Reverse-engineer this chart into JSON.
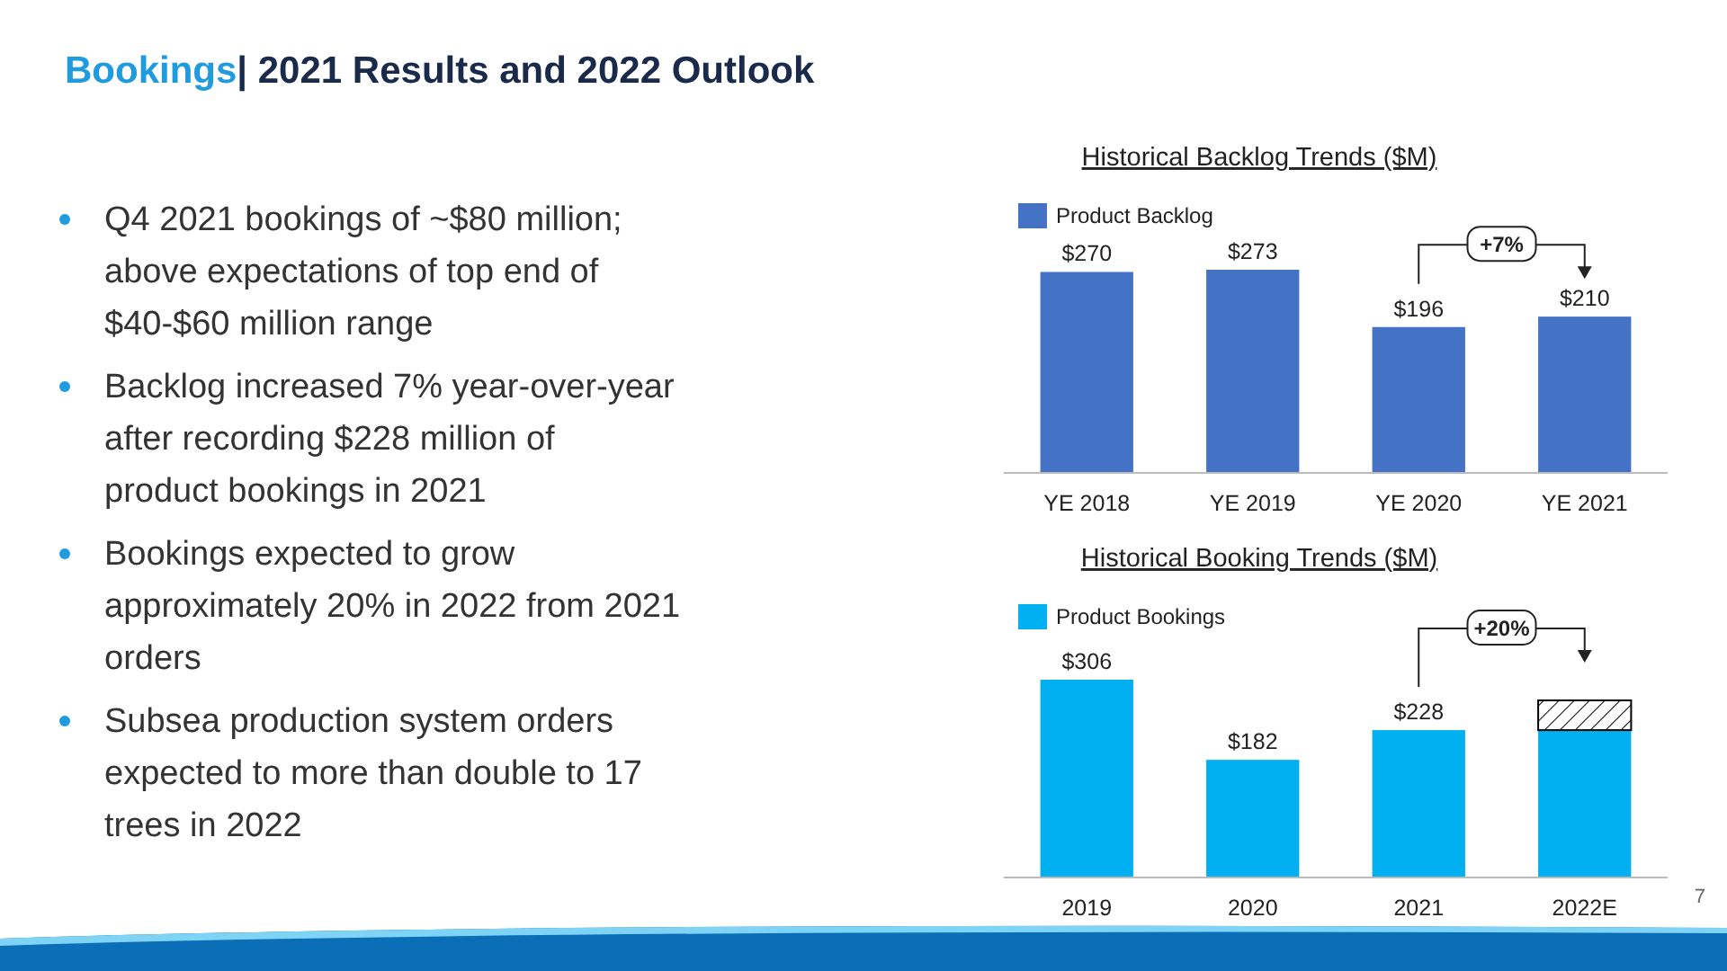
{
  "chart_data": [
    {
      "type": "other",
      "title": "Bookings| 2021 Results and 2022 Outlook",
      "annotations": [
        "Q4 2021 bookings of ~$80 million; above expectations of top end of $40-$60 million range",
        "Backlog increased 7% year-over-year after recording $228 million of product bookings in 2021",
        "Bookings expected to grow approximately 20% in 2022 from 2021 orders",
        "Subsea production system orders expected to more than double to 17 trees in 2022",
        "7"
      ]
    },
    {
      "type": "bar",
      "title": "Historical Backlog Trends ($M)",
      "categories": [
        "YE 2018",
        "YE 2019",
        "YE 2020",
        "YE 2021"
      ],
      "legend": "top left",
      "annotations": [
        "+7%"
      ],
      "series": [
        {
          "name": "Product Backlog",
          "color": "#4472c4",
          "values": [
            270,
            273,
            196,
            210
          ],
          "value_labels": [
            "$270",
            "$273",
            "$196",
            "$210"
          ]
        }
      ]
    },
    {
      "type": "bar",
      "title": "Historical Booking Trends ($M)",
      "categories": [
        "2019",
        "2020",
        "2021",
        "2022E"
      ],
      "legend": "top left",
      "stacked": true,
      "annotations": [
        "+20%"
      ],
      "series": [
        {
          "name": "Product Bookings",
          "color": "#00b0f0",
          "values": [
            306,
            182,
            228,
            228
          ],
          "value_labels": [
            "$306",
            "$182",
            "$228",
            null
          ]
        },
        {
          "color": "#000000",
          "values": [
            null,
            null,
            null,
            46
          ]
        }
      ]
    }
  ]
}
